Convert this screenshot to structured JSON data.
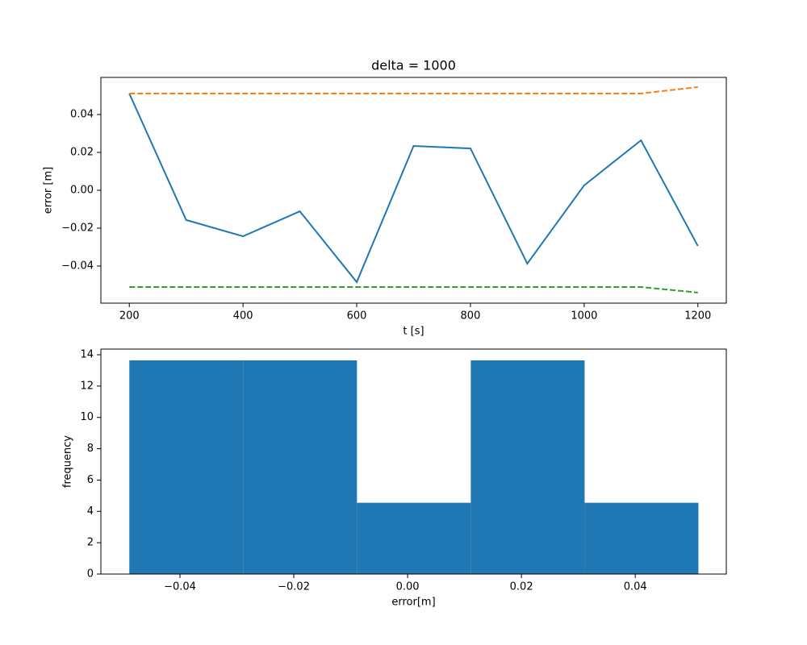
{
  "chart_data": [
    {
      "type": "line",
      "title": "delta = 1000",
      "xlabel": "t [s]",
      "ylabel": "error [m]",
      "x": [
        200,
        300,
        400,
        500,
        600,
        700,
        800,
        900,
        1000,
        1100,
        1200
      ],
      "series": [
        {
          "color": "#1f77b4",
          "linestyle": "solid",
          "values": [
            0.0511,
            -0.0157,
            -0.0243,
            -0.0111,
            -0.0485,
            0.0234,
            0.0221,
            -0.0387,
            0.0026,
            0.0264,
            -0.0294
          ]
        },
        {
          "color": "#ff7f0e",
          "linestyle": "dashed",
          "values": [
            0.0511,
            0.0511,
            0.0511,
            0.0511,
            0.0511,
            0.0511,
            0.0511,
            0.0511,
            0.0511,
            0.0511,
            0.0545
          ]
        },
        {
          "color": "#2ca02c",
          "linestyle": "dashed",
          "values": [
            -0.0511,
            -0.0511,
            -0.0511,
            -0.0511,
            -0.0511,
            -0.0511,
            -0.0511,
            -0.0511,
            -0.0511,
            -0.0511,
            -0.054
          ]
        }
      ],
      "xlim": [
        150,
        1250
      ],
      "xticks": [
        200,
        400,
        600,
        800,
        1000,
        1200
      ],
      "ylim": [
        -0.0596,
        0.0596
      ],
      "yticks": [
        {
          "value": -0.04,
          "label": "−0.04"
        },
        {
          "value": -0.02,
          "label": "−0.02"
        },
        {
          "value": 0,
          "label": "0.00"
        },
        0.02,
        0.04
      ]
    },
    {
      "type": "histogram",
      "xlabel": "error[m]",
      "ylabel": "frequency",
      "color": "#1f77b4",
      "bins": [
        -0.0489,
        -0.0289,
        -0.0089,
        0.0111,
        0.0311,
        0.0511
      ],
      "values": [
        13.64,
        13.64,
        4.55,
        13.64,
        4.55
      ],
      "xlim": [
        -0.0539,
        0.056
      ],
      "xticks": [
        {
          "value": -0.04,
          "label": "−0.04"
        },
        {
          "value": -0.02,
          "label": "−0.02"
        },
        {
          "value": 0,
          "label": "0.00"
        },
        0.02,
        0.04
      ],
      "ylim": [
        0,
        14.36
      ],
      "yticks": [
        0,
        2,
        4,
        6,
        8,
        10,
        12,
        14
      ]
    }
  ]
}
